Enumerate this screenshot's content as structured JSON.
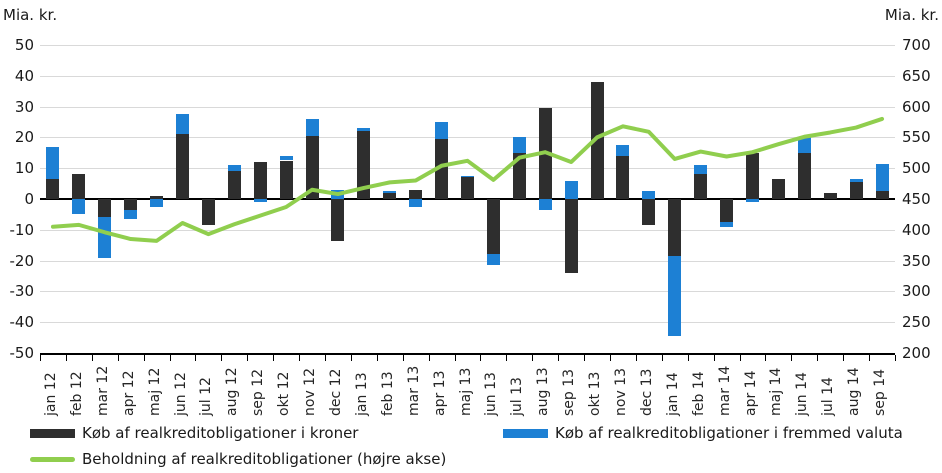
{
  "header": {
    "left_axis_unit": "Mia. kr.",
    "right_axis_unit": "Mia. kr."
  },
  "colors": {
    "kroner_bar": "#2e2e2e",
    "valuta_bar": "#1d80d4",
    "beholdning_line": "#90ce4e",
    "gridline": "#d9d9d9",
    "axis": "#000000"
  },
  "legend": [
    {
      "label": "Køb af realkreditobligationer i kroner",
      "type": "bar",
      "color": "#2e2e2e"
    },
    {
      "label": "Køb af realkreditobligationer i fremmed valuta",
      "type": "bar",
      "color": "#1d80d4"
    },
    {
      "label": "Beholdning af realkreditobligationer (højre akse)",
      "type": "line",
      "color": "#90ce4e"
    }
  ],
  "chart_data": {
    "type": "bar",
    "subtype": "stacked-bars-with-line",
    "categories": [
      "jan 12",
      "feb 12",
      "mar 12",
      "apr 12",
      "maj 12",
      "jun 12",
      "jul 12",
      "aug 12",
      "sep 12",
      "okt 12",
      "nov 12",
      "dec 12",
      "jan 13",
      "feb 13",
      "mar 13",
      "apr 13",
      "maj 13",
      "jun 13",
      "jul 13",
      "aug 13",
      "sep 13",
      "okt 13",
      "nov 13",
      "dec 13",
      "jan 14",
      "feb 14",
      "mar 14",
      "apr 14",
      "maj 14",
      "jun 14",
      "jul 14",
      "aug 14",
      "sep 14"
    ],
    "series": [
      {
        "name": "Køb af realkreditobligationer i kroner",
        "type": "bar",
        "axis": "left",
        "color": "#2e2e2e",
        "values": [
          6.5,
          8,
          -6,
          -3.5,
          1,
          21,
          -8.5,
          9,
          12,
          12.5,
          20.5,
          -13.5,
          22,
          2,
          3,
          19.5,
          7,
          -18,
          15,
          29.5,
          -24,
          38,
          14,
          -8.5,
          -18.5,
          8,
          -7.5,
          15,
          6.5,
          15,
          2,
          5.5,
          2.5
        ]
      },
      {
        "name": "Køb af realkreditobligationer i fremmed valuta",
        "type": "bar",
        "axis": "left",
        "color": "#1d80d4",
        "values": [
          10.5,
          -5,
          -13,
          -3,
          -2.5,
          6.5,
          0,
          2,
          -1,
          1.5,
          5.5,
          3,
          1,
          0.5,
          -2.5,
          5.5,
          0.5,
          -3.5,
          5,
          -3.5,
          6,
          0,
          3.5,
          2.5,
          -26,
          3,
          -1.5,
          -1,
          0,
          5,
          0,
          1,
          9
        ]
      },
      {
        "name": "Beholdning af realkreditobligationer (højre akse)",
        "type": "line",
        "axis": "right",
        "color": "#90ce4e",
        "values": [
          405,
          408,
          396,
          385,
          382,
          411,
          393,
          409,
          423,
          437,
          465,
          458,
          468,
          477,
          480,
          504,
          512,
          481,
          517,
          526,
          510,
          550,
          568,
          559,
          515,
          527,
          519,
          526,
          539,
          551,
          558,
          566,
          580
        ]
      }
    ],
    "left_axis": {
      "title": "Mia. kr.",
      "min": -50,
      "max": 50,
      "ticks": [
        50,
        40,
        30,
        20,
        10,
        0,
        -10,
        -20,
        -30,
        -40,
        -50
      ]
    },
    "right_axis": {
      "title": "Mia. kr.",
      "min": 200,
      "max": 700,
      "ticks": [
        700,
        650,
        600,
        550,
        500,
        450,
        400,
        350,
        300,
        250,
        200
      ]
    },
    "grid": true,
    "legend_position": "bottom"
  }
}
